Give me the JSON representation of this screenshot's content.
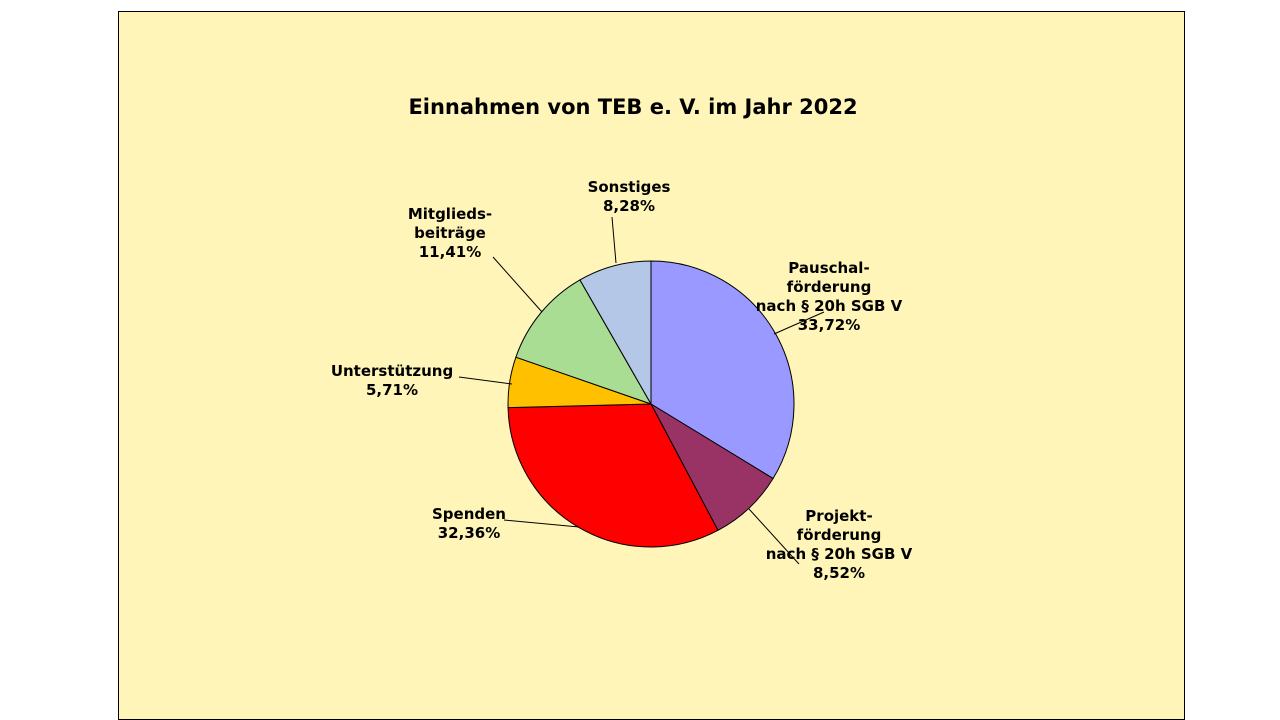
{
  "chart_data": {
    "type": "pie",
    "title": "Einnahmen von TEB e. V. im Jahr 2022",
    "start_angle_deg": 0,
    "direction": "clockwise",
    "slices": [
      {
        "label_lines": [
          "Pauschal-",
          "förderung",
          "nach § 20h SGB V"
        ],
        "percent_label": "33,72%",
        "value": 33.72,
        "color": "#9999ff"
      },
      {
        "label_lines": [
          "Projekt-",
          "förderung",
          "nach § 20h SGB V"
        ],
        "percent_label": "8,52%",
        "value": 8.52,
        "color": "#993366"
      },
      {
        "label_lines": [
          "Spenden"
        ],
        "percent_label": "32,36%",
        "value": 32.36,
        "color": "#ff0000"
      },
      {
        "label_lines": [
          "Unterstützung"
        ],
        "percent_label": "5,71%",
        "value": 5.71,
        "color": "#ffc000"
      },
      {
        "label_lines": [
          "Mitglieds-",
          "beiträge"
        ],
        "percent_label": "11,41%",
        "value": 11.41,
        "color": "#a9dd94"
      },
      {
        "label_lines": [
          "Sonstiges"
        ],
        "percent_label": "8,28%",
        "value": 8.28,
        "color": "#b4c7e7"
      }
    ],
    "legend": "none"
  }
}
